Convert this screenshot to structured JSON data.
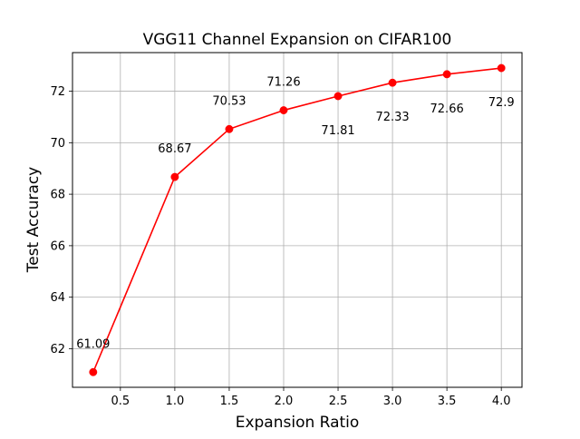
{
  "chart_data": {
    "type": "line",
    "title": "VGG11 Channel Expansion on CIFAR100",
    "xlabel": "Expansion Ratio",
    "ylabel": "Test Accuracy",
    "xlim": [
      0.06,
      4.19
    ],
    "ylim": [
      60.5,
      73.5
    ],
    "xticks": [
      "0.5",
      "1.0",
      "1.5",
      "2.0",
      "2.5",
      "3.0",
      "3.5",
      "4.0"
    ],
    "xtick_values": [
      0.5,
      1.0,
      1.5,
      2.0,
      2.5,
      3.0,
      3.5,
      4.0
    ],
    "yticks": [
      "62",
      "64",
      "66",
      "68",
      "70",
      "72"
    ],
    "ytick_values": [
      62,
      64,
      66,
      68,
      70,
      72
    ],
    "grid": true,
    "series": [
      {
        "color": "#ff0000",
        "marker": "circle",
        "x": [
          0.25,
          1.0,
          1.5,
          2.0,
          2.5,
          3.0,
          3.5,
          4.0
        ],
        "y": [
          61.09,
          68.67,
          70.53,
          71.26,
          71.81,
          72.33,
          72.66,
          72.9
        ],
        "labels": [
          "61.09",
          "68.67",
          "70.53",
          "71.26",
          "71.81",
          "72.33",
          "72.66",
          "72.9"
        ],
        "label_positions": [
          "above",
          "above",
          "above",
          "above",
          "below",
          "below",
          "below",
          "below"
        ]
      }
    ]
  }
}
